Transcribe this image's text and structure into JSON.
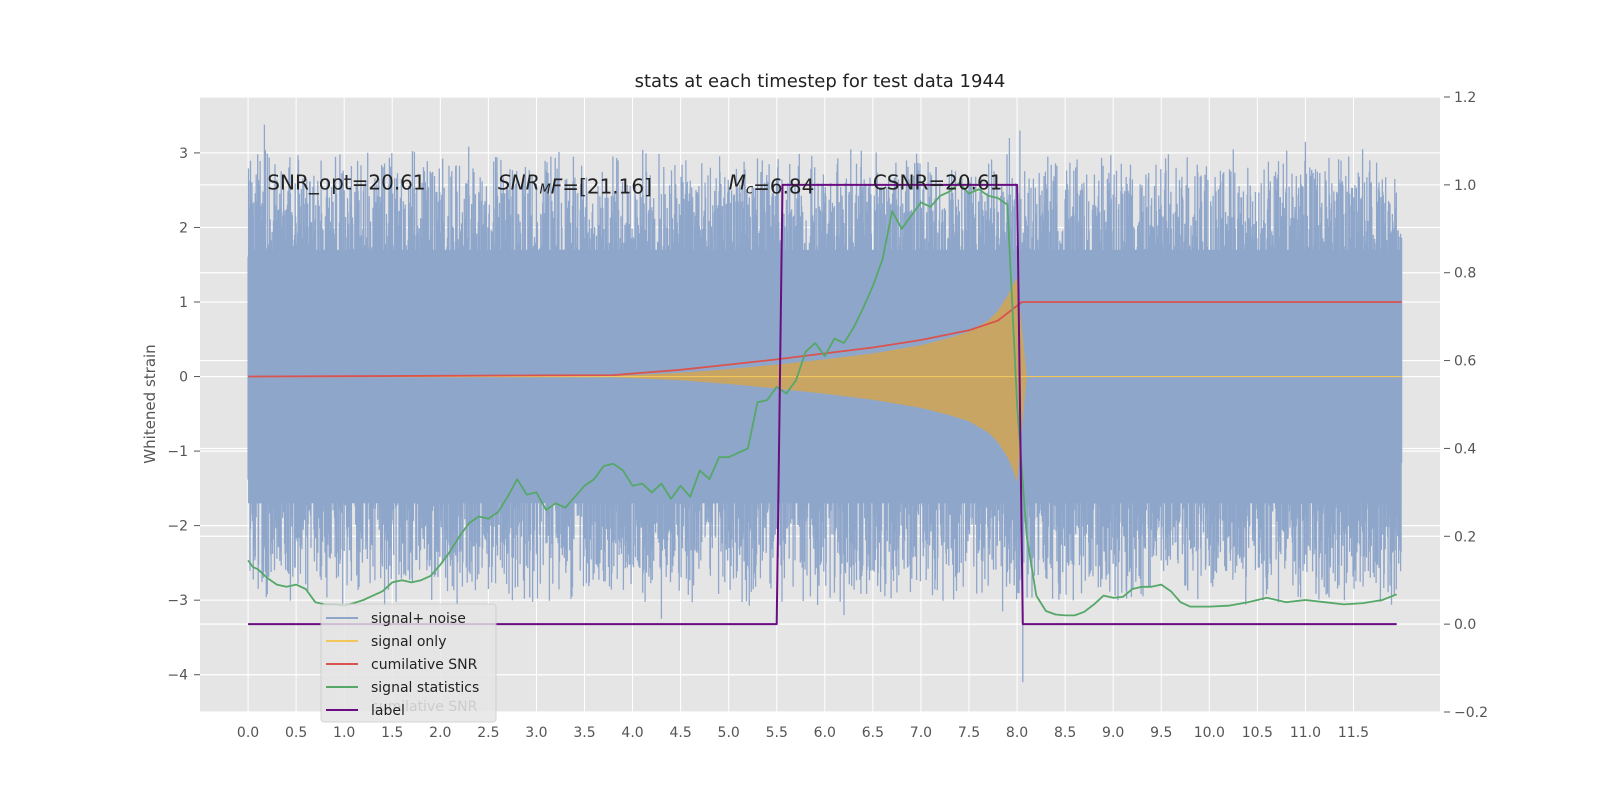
{
  "chart_data": {
    "type": "line",
    "title": "stats at each timestep for test data 1944",
    "ylabel": "Whitened strain",
    "y2label": "",
    "xlim": [
      -0.5,
      12.4
    ],
    "ylim": [
      -4.5,
      3.75
    ],
    "y2lim": [
      -0.2,
      1.2
    ],
    "grid": true,
    "x_ticks": [
      "0.0",
      "0.5",
      "1.0",
      "1.5",
      "2.0",
      "2.5",
      "3.0",
      "3.5",
      "4.0",
      "4.5",
      "5.0",
      "5.5",
      "6.0",
      "6.5",
      "7.0",
      "7.5",
      "8.0",
      "8.5",
      "9.0",
      "9.5",
      "10.0",
      "10.5",
      "11.0",
      "11.5"
    ],
    "y_ticks": [
      "3",
      "2",
      "1",
      "0",
      "−1",
      "−2",
      "−3",
      "−4"
    ],
    "y2_ticks": [
      "1.2",
      "1.0",
      "0.8",
      "0.6",
      "0.4",
      "0.2",
      "0.0",
      "−0.2"
    ],
    "annotations": [
      {
        "id": "snr-opt",
        "parts": [
          {
            "t": "SNR_opt=20.61"
          }
        ],
        "x": 0.2,
        "y": 2.6
      },
      {
        "id": "snr-mf",
        "parts": [
          {
            "t": "SNR",
            "i": true
          },
          {
            "t": "M",
            "i": true,
            "sub": true
          },
          {
            "t": "F",
            "i": true
          },
          {
            "t": "=[21.16]"
          }
        ],
        "x": 2.6,
        "y": 2.6
      },
      {
        "id": "mc",
        "parts": [
          {
            "t": "M",
            "i": true
          },
          {
            "t": "c",
            "i": true,
            "sub": true
          },
          {
            "t": "=6.84"
          }
        ],
        "x": 5.0,
        "y": 2.6
      },
      {
        "id": "csnr",
        "parts": [
          {
            "t": "CSNR=20.61"
          }
        ],
        "x": 6.5,
        "y": 2.6
      }
    ],
    "legend": {
      "placement": "lower-left",
      "entries": [
        {
          "label": "signal+ noise",
          "color": "#8fa6cb"
        },
        {
          "label": "signal only",
          "color": "#f2c75a"
        },
        {
          "label": "cumilative SNR",
          "color": "#d9534f"
        },
        {
          "label": "signal statistics",
          "color": "#55a868"
        },
        {
          "label": "label",
          "color": "#6a0d83"
        }
      ],
      "ghost_text": "cumilative SNR"
    },
    "series": [
      {
        "name": "signal+ noise",
        "axis": "left",
        "color": "#8fa6cb",
        "style": "dense-noise",
        "x_range": [
          0.0,
          12.0
        ],
        "band": [
          -1.7,
          1.7
        ],
        "outliers": [
          {
            "x": 0.17,
            "y": 3.38
          },
          {
            "x": 0.2,
            "y": -2.1
          },
          {
            "x": 1.0,
            "y": 2.5
          },
          {
            "x": 1.3,
            "y": -2.55
          },
          {
            "x": 2.5,
            "y": -2.85
          },
          {
            "x": 2.75,
            "y": -3.0
          },
          {
            "x": 3.15,
            "y": 2.95
          },
          {
            "x": 4.3,
            "y": -3.25
          },
          {
            "x": 4.55,
            "y": 2.45
          },
          {
            "x": 5.35,
            "y": 2.9
          },
          {
            "x": 5.85,
            "y": -2.95
          },
          {
            "x": 6.1,
            "y": -2.9
          },
          {
            "x": 6.2,
            "y": -3.2
          },
          {
            "x": 6.27,
            "y": 3.05
          },
          {
            "x": 6.85,
            "y": 2.9
          },
          {
            "x": 7.55,
            "y": -2.55
          },
          {
            "x": 7.85,
            "y": -3.15
          },
          {
            "x": 7.92,
            "y": 3.2
          },
          {
            "x": 7.97,
            "y": -2.8
          },
          {
            "x": 8.03,
            "y": 3.3
          },
          {
            "x": 8.06,
            "y": -4.1
          },
          {
            "x": 9.05,
            "y": -3.0
          },
          {
            "x": 10.25,
            "y": 3.05
          },
          {
            "x": 10.4,
            "y": 2.8
          },
          {
            "x": 10.7,
            "y": 2.5
          },
          {
            "x": 11.0,
            "y": 3.15
          },
          {
            "x": 11.35,
            "y": -2.8
          },
          {
            "x": 11.45,
            "y": 2.95
          }
        ]
      },
      {
        "name": "signal only",
        "axis": "left",
        "color": "#f2c75a",
        "style": "chirp-envelope",
        "x": [
          0.0,
          3.8,
          4.5,
          5.0,
          5.5,
          6.0,
          6.5,
          7.0,
          7.3,
          7.5,
          7.7,
          7.8,
          7.9,
          7.95,
          8.0,
          8.1,
          12.0
        ],
        "upper": [
          0,
          0.01,
          0.05,
          0.1,
          0.16,
          0.23,
          0.31,
          0.42,
          0.52,
          0.6,
          0.75,
          0.88,
          1.08,
          1.22,
          1.32,
          0,
          0
        ],
        "lower": [
          0,
          -0.01,
          -0.05,
          -0.1,
          -0.16,
          -0.23,
          -0.31,
          -0.42,
          -0.52,
          -0.6,
          -0.75,
          -0.88,
          -1.08,
          -1.22,
          -1.42,
          0,
          0
        ]
      },
      {
        "name": "cumilative SNR",
        "axis": "left",
        "color": "#d9534f",
        "x": [
          0.0,
          1.0,
          2.0,
          3.0,
          3.8,
          4.5,
          5.0,
          5.5,
          6.0,
          6.5,
          7.0,
          7.5,
          7.8,
          7.95,
          8.05,
          12.0
        ],
        "y": [
          0.0,
          0.005,
          0.01,
          0.015,
          0.02,
          0.09,
          0.16,
          0.23,
          0.31,
          0.39,
          0.49,
          0.62,
          0.75,
          0.9,
          1.0,
          1.0
        ]
      },
      {
        "name": "signal statistics",
        "axis": "right",
        "color": "#55a868",
        "x": [
          0.0,
          0.05,
          0.1,
          0.15,
          0.2,
          0.3,
          0.4,
          0.5,
          0.6,
          0.7,
          0.8,
          0.9,
          1.0,
          1.1,
          1.2,
          1.3,
          1.4,
          1.5,
          1.6,
          1.7,
          1.8,
          1.9,
          2.0,
          2.1,
          2.2,
          2.3,
          2.4,
          2.5,
          2.6,
          2.7,
          2.75,
          2.8,
          2.9,
          3.0,
          3.1,
          3.2,
          3.3,
          3.4,
          3.5,
          3.6,
          3.7,
          3.8,
          3.9,
          4.0,
          4.1,
          4.2,
          4.3,
          4.4,
          4.5,
          4.6,
          4.7,
          4.8,
          4.9,
          5.0,
          5.1,
          5.2,
          5.3,
          5.4,
          5.5,
          5.6,
          5.7,
          5.8,
          5.9,
          6.0,
          6.1,
          6.2,
          6.3,
          6.4,
          6.5,
          6.6,
          6.7,
          6.8,
          6.9,
          7.0,
          7.1,
          7.2,
          7.3,
          7.4,
          7.5,
          7.6,
          7.7,
          7.8,
          7.9,
          8.0,
          8.1,
          8.2,
          8.3,
          8.4,
          8.5,
          8.6,
          8.7,
          8.8,
          8.9,
          9.0,
          9.1,
          9.2,
          9.3,
          9.4,
          9.5,
          9.6,
          9.7,
          9.8,
          9.9,
          10.0,
          10.2,
          10.4,
          10.6,
          10.8,
          11.0,
          11.2,
          11.4,
          11.6,
          11.8,
          11.95
        ],
        "y": [
          0.145,
          0.13,
          0.125,
          0.115,
          0.105,
          0.09,
          0.085,
          0.09,
          0.08,
          0.05,
          0.045,
          0.045,
          0.042,
          0.048,
          0.055,
          0.065,
          0.075,
          0.095,
          0.1,
          0.095,
          0.1,
          0.11,
          0.135,
          0.165,
          0.2,
          0.23,
          0.245,
          0.24,
          0.255,
          0.29,
          0.31,
          0.33,
          0.295,
          0.3,
          0.26,
          0.275,
          0.265,
          0.29,
          0.315,
          0.33,
          0.36,
          0.365,
          0.35,
          0.315,
          0.32,
          0.3,
          0.32,
          0.285,
          0.315,
          0.29,
          0.35,
          0.33,
          0.38,
          0.38,
          0.39,
          0.4,
          0.505,
          0.51,
          0.54,
          0.525,
          0.555,
          0.62,
          0.64,
          0.61,
          0.65,
          0.64,
          0.675,
          0.72,
          0.77,
          0.83,
          0.94,
          0.9,
          0.93,
          0.96,
          0.95,
          0.975,
          0.985,
          1.005,
          0.98,
          0.99,
          0.975,
          0.97,
          0.955,
          0.5,
          0.2,
          0.065,
          0.03,
          0.022,
          0.02,
          0.02,
          0.028,
          0.045,
          0.065,
          0.06,
          0.062,
          0.08,
          0.085,
          0.085,
          0.09,
          0.075,
          0.05,
          0.04,
          0.04,
          0.04,
          0.042,
          0.05,
          0.06,
          0.05,
          0.055,
          0.05,
          0.045,
          0.048,
          0.055,
          0.068
        ]
      },
      {
        "name": "label",
        "axis": "right",
        "color": "#6a0d83",
        "x": [
          0.0,
          5.5,
          5.56,
          8.0,
          8.06,
          11.95
        ],
        "y": [
          0.0,
          0.0,
          1.0,
          1.0,
          0.0,
          0.0
        ]
      }
    ]
  }
}
